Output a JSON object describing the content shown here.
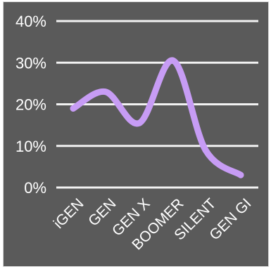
{
  "chart_data": {
    "type": "line",
    "title": "",
    "xlabel": "",
    "ylabel": "",
    "categories": [
      "iGEN",
      "GEN",
      "GEN X",
      "BOOMER",
      "SILENT",
      "GEN GI"
    ],
    "series": [
      {
        "values": [
          0.19,
          0.23,
          0.155,
          0.305,
          0.09,
          0.03
        ]
      }
    ],
    "ylim": [
      0,
      0.4
    ],
    "yticks": [
      {
        "value": 0.0,
        "label": "0%"
      },
      {
        "value": 0.1,
        "label": "10%"
      },
      {
        "value": 0.2,
        "label": "20%"
      },
      {
        "value": 0.3,
        "label": "30%"
      },
      {
        "value": 0.4,
        "label": "40%"
      }
    ],
    "grid": true,
    "legend": "none",
    "colors": {
      "background": "#5a5a5a",
      "line": "#c79cf5",
      "grid": "#f2f2f2",
      "text": "#ffffff"
    }
  }
}
